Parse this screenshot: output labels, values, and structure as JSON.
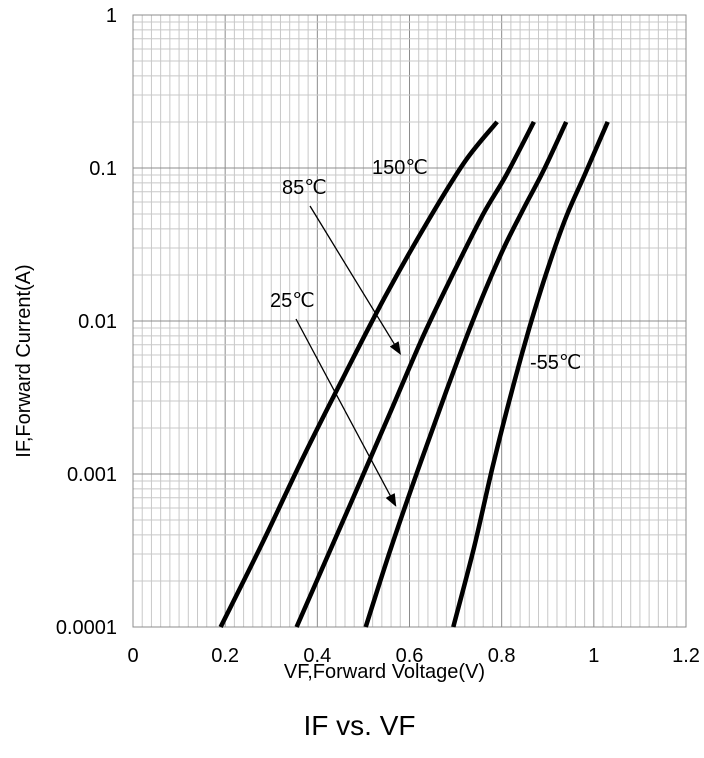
{
  "chart_data": {
    "type": "line",
    "title": "IF vs. VF",
    "xlabel": "VF,Forward Voltage(V)",
    "ylabel": "IF,Forward Current(A)",
    "xlim": [
      0,
      1.2
    ],
    "ylim": [
      0.0001,
      1
    ],
    "yscale": "log",
    "grid": true,
    "x_ticks": [
      "0",
      "0.2",
      "0.4",
      "0.6",
      "0.8",
      "1",
      "1.2"
    ],
    "y_ticks": [
      "0.0001",
      "0.001",
      "0.01",
      "0.1",
      "1"
    ],
    "line_color": "#000000",
    "series": [
      {
        "name": "150℃",
        "x": [
          0.19,
          0.28,
          0.37,
          0.46,
          0.55,
          0.64,
          0.72,
          0.79
        ],
        "y": [
          0.0001,
          0.00035,
          0.0013,
          0.0045,
          0.015,
          0.045,
          0.11,
          0.2
        ]
      },
      {
        "name": "85℃",
        "x": [
          0.355,
          0.42,
          0.49,
          0.56,
          0.63,
          0.7,
          0.76,
          0.81,
          0.87
        ],
        "y": [
          0.0001,
          0.00028,
          0.00085,
          0.0026,
          0.008,
          0.022,
          0.05,
          0.09,
          0.2
        ]
      },
      {
        "name": "25℃",
        "x": [
          0.505,
          0.56,
          0.62,
          0.68,
          0.74,
          0.8,
          0.85,
          0.89,
          0.94
        ],
        "y": [
          0.0001,
          0.00033,
          0.0011,
          0.0035,
          0.0105,
          0.028,
          0.056,
          0.095,
          0.2
        ]
      },
      {
        "name": "-55℃",
        "x": [
          0.695,
          0.74,
          0.78,
          0.82,
          0.86,
          0.9,
          0.94,
          0.98,
          1.03
        ],
        "y": [
          0.0001,
          0.00033,
          0.0011,
          0.0033,
          0.009,
          0.022,
          0.048,
          0.09,
          0.2
        ]
      }
    ],
    "annotations": [
      {
        "text": "150℃"
      },
      {
        "text": "85℃",
        "arrow_to": {
          "x": 0.58,
          "y": 0.0061
        }
      },
      {
        "text": "25℃",
        "arrow_to": {
          "x": 0.57,
          "y": 0.00062
        }
      },
      {
        "text": "-55℃"
      }
    ]
  }
}
